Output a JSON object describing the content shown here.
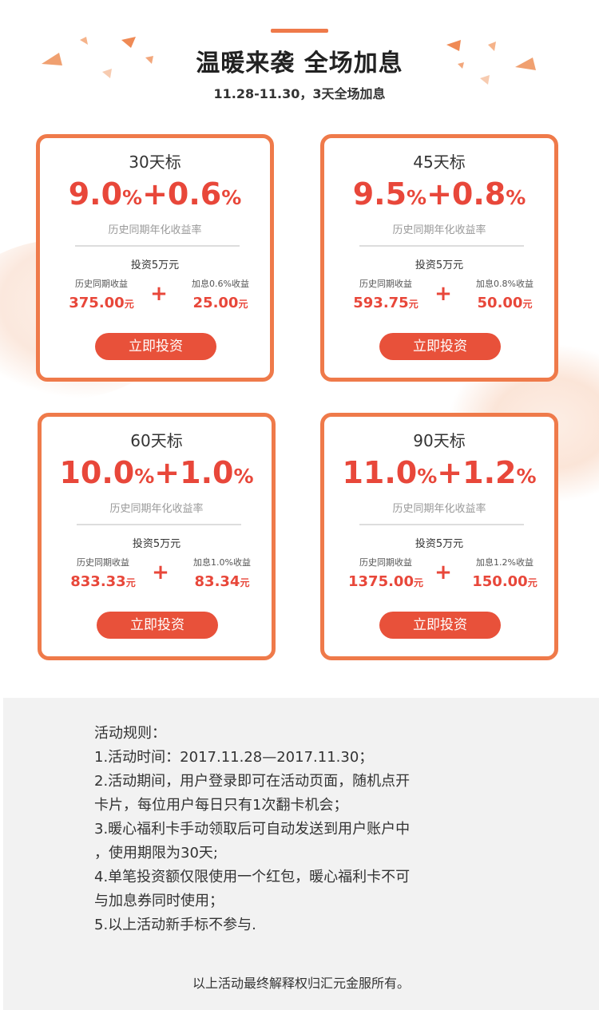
{
  "header": {
    "title": "温暖来袭 全场加息",
    "subtitle": "11.28-11.30，3天全场加息"
  },
  "cards": [
    {
      "term": "30天标",
      "rate_base": "9.0",
      "rate_extra": "+0.6",
      "pct": "%",
      "rate_label": "历史同期年化收益率",
      "invest_label": "投资5万元",
      "left_label": "历史同期收益",
      "left_value": "375.00",
      "right_label": "加息0.6%收益",
      "right_value": "25.00",
      "unit": "元",
      "plus": "+",
      "button_label": "立即投资"
    },
    {
      "term": "45天标",
      "rate_base": "9.5",
      "rate_extra": "+0.8",
      "pct": "%",
      "rate_label": "历史同期年化收益率",
      "invest_label": "投资5万元",
      "left_label": "历史同期收益",
      "left_value": "593.75",
      "right_label": "加息0.8%收益",
      "right_value": "50.00",
      "unit": "元",
      "plus": "+",
      "button_label": "立即投资"
    },
    {
      "term": "60天标",
      "rate_base": "10.0",
      "rate_extra": "+1.0",
      "pct": "%",
      "rate_label": "历史同期年化收益率",
      "invest_label": "投资5万元",
      "left_label": "历史同期收益",
      "left_value": "833.33",
      "right_label": "加息1.0%收益",
      "right_value": "83.34",
      "unit": "元",
      "plus": "+",
      "button_label": "立即投资"
    },
    {
      "term": "90天标",
      "rate_base": "11.0",
      "rate_extra": "+1.2",
      "pct": "%",
      "rate_label": "历史同期年化收益率",
      "invest_label": "投资5万元",
      "left_label": "历史同期收益",
      "left_value": "1375.00",
      "right_label": "加息1.2%收益",
      "right_value": "150.00",
      "unit": "元",
      "plus": "+",
      "button_label": "立即投资"
    }
  ],
  "rules": {
    "title": "活动规则：",
    "lines": [
      "1.活动时间：2017.11.28—2017.11.30；",
      "2.活动期间，用户登录即可在活动页面，随机点开",
      "卡片，每位用户每日只有1次翻卡机会；",
      "3.暖心福利卡手动领取后可自动发送到用户账户中",
      "，使用期限为30天;",
      "4.单笔投资额仅限使用一个红包，暖心福利卡不可",
      "与加息券同时使用；",
      "5.以上活动新手标不参与."
    ],
    "footer": "以上活动最终解释权归汇元金服所有。"
  },
  "colors": {
    "accent": "#ef7a4a",
    "red": "#e8473a",
    "button": "#e8513a",
    "rules_bg": "#f2f2f2"
  }
}
